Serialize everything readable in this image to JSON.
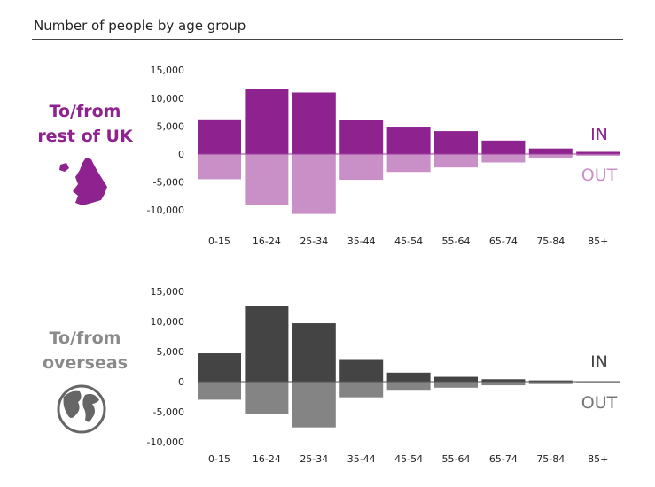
{
  "title": "Number of people by age group",
  "colors": {
    "uk_in": "#8e2390",
    "uk_out": "#c990c8",
    "os_in": "#444444",
    "os_out": "#848484"
  },
  "panels": [
    {
      "label_line1": "To/from",
      "label_line2": "rest of UK",
      "icon": "england-wales-map-icon",
      "in_label": "IN",
      "out_label": "OUT"
    },
    {
      "label_line1": "To/from",
      "label_line2": "overseas",
      "icon": "globe-icon",
      "in_label": "IN",
      "out_label": "OUT"
    }
  ],
  "chart_data": [
    {
      "type": "bar",
      "categories": [
        "0-15",
        "16-24",
        "25-34",
        "35-44",
        "45-54",
        "55-64",
        "65-74",
        "75-84",
        "85+"
      ],
      "series": [
        {
          "name": "IN",
          "values": [
            6200,
            11700,
            11000,
            6100,
            4900,
            4100,
            2400,
            1000,
            400
          ]
        },
        {
          "name": "OUT",
          "values": [
            -4500,
            -9100,
            -10700,
            -4600,
            -3200,
            -2400,
            -1500,
            -700,
            -300
          ]
        }
      ],
      "ylim": [
        -10000,
        15000
      ],
      "yticks": [
        15000,
        10000,
        5000,
        0,
        -5000,
        -10000
      ],
      "ytick_labels": [
        "15,000",
        "10,000",
        "5,000",
        "0",
        "-5,000",
        "-10,000"
      ],
      "grid": false
    },
    {
      "type": "bar",
      "categories": [
        "0-15",
        "16-24",
        "25-34",
        "35-44",
        "45-54",
        "55-64",
        "65-74",
        "75-84",
        "85+"
      ],
      "series": [
        {
          "name": "IN",
          "values": [
            4700,
            12500,
            9700,
            3600,
            1500,
            800,
            400,
            200,
            50
          ]
        },
        {
          "name": "OUT",
          "values": [
            -3000,
            -5400,
            -7600,
            -2600,
            -1500,
            -1000,
            -600,
            -400,
            -100
          ]
        }
      ],
      "ylim": [
        -10000,
        15000
      ],
      "yticks": [
        15000,
        10000,
        5000,
        0,
        -5000,
        -10000
      ],
      "ytick_labels": [
        "15,000",
        "10,000",
        "5,000",
        "0",
        "-5,000",
        "-10,000"
      ],
      "grid": false
    }
  ]
}
